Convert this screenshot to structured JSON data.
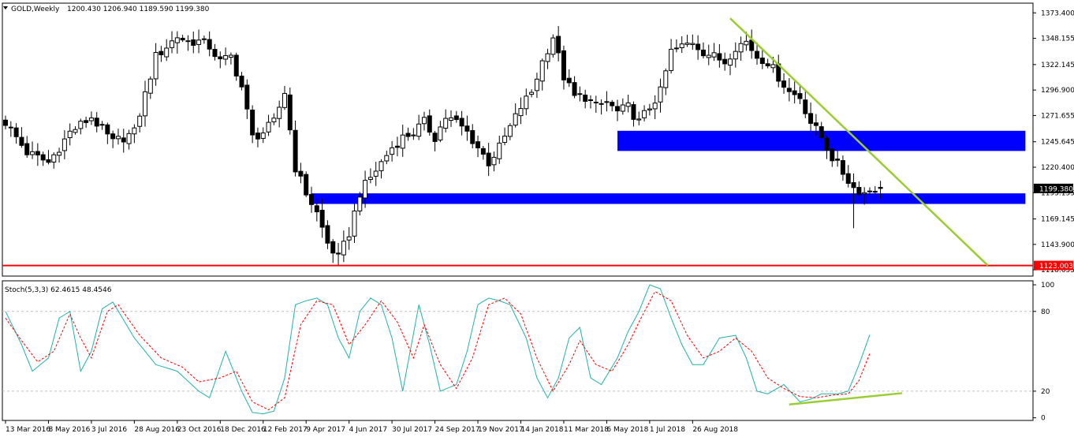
{
  "chart_data": {
    "type": "candlestick",
    "symbol": "GOLD",
    "timeframe": "Weekly",
    "header_title": "GOLD,Weekly",
    "header_ohlc": "1200.430 1206.940 1189.590 1199.380",
    "main": {
      "ylim": [
        1112.5,
        1383.0
      ],
      "yticks": [
        1373.4,
        1348.155,
        1322.145,
        1296.9,
        1271.655,
        1245.645,
        1220.4,
        1195.155,
        1169.145,
        1143.9,
        1118.655
      ],
      "ytick_labels": [
        "1373.400",
        "1348.155",
        "1322.145",
        "1296.900",
        "1271.655",
        "1245.645",
        "1220.400",
        "1195.155",
        "1169.145",
        "1143.900",
        "1118.655"
      ],
      "current_price": 1199.38,
      "current_price_label": "1199.380",
      "support_level": 1123.003,
      "support_label": "1123.003",
      "close_anchors": [
        [
          0,
          1265
        ],
        [
          4,
          1235
        ],
        [
          8,
          1225
        ],
        [
          12,
          1255
        ],
        [
          16,
          1270
        ],
        [
          20,
          1245
        ],
        [
          24,
          1255
        ],
        [
          28,
          1330
        ],
        [
          32,
          1350
        ],
        [
          34,
          1345
        ],
        [
          36,
          1345
        ],
        [
          38,
          1340
        ],
        [
          40,
          1325
        ],
        [
          42,
          1330
        ],
        [
          44,
          1300
        ],
        [
          46,
          1250
        ],
        [
          48,
          1255
        ],
        [
          50,
          1265
        ],
        [
          52,
          1295
        ],
        [
          54,
          1220
        ],
        [
          56,
          1195
        ],
        [
          58,
          1175
        ],
        [
          60,
          1145
        ],
        [
          62,
          1130
        ],
        [
          64,
          1155
        ],
        [
          66,
          1195
        ],
        [
          68,
          1210
        ],
        [
          70,
          1225
        ],
        [
          72,
          1240
        ],
        [
          74,
          1250
        ],
        [
          76,
          1255
        ],
        [
          78,
          1265
        ],
        [
          80,
          1250
        ],
        [
          82,
          1270
        ],
        [
          84,
          1265
        ],
        [
          86,
          1255
        ],
        [
          88,
          1240
        ],
        [
          90,
          1225
        ],
        [
          92,
          1240
        ],
        [
          94,
          1260
        ],
        [
          96,
          1280
        ],
        [
          98,
          1295
        ],
        [
          100,
          1325
        ],
        [
          102,
          1350
        ],
        [
          104,
          1310
        ],
        [
          106,
          1290
        ],
        [
          108,
          1290
        ],
        [
          110,
          1280
        ],
        [
          112,
          1285
        ],
        [
          114,
          1275
        ],
        [
          116,
          1280
        ],
        [
          118,
          1265
        ],
        [
          120,
          1280
        ],
        [
          122,
          1295
        ],
        [
          124,
          1335
        ],
        [
          126,
          1340
        ],
        [
          128,
          1345
        ],
        [
          130,
          1335
        ],
        [
          132,
          1330
        ],
        [
          134,
          1325
        ],
        [
          136,
          1340
        ],
        [
          138,
          1345
        ],
        [
          140,
          1330
        ],
        [
          142,
          1325
        ],
        [
          144,
          1310
        ],
        [
          146,
          1295
        ],
        [
          148,
          1290
        ],
        [
          150,
          1265
        ],
        [
          152,
          1250
        ],
        [
          154,
          1230
        ],
        [
          156,
          1215
        ],
        [
          158,
          1200
        ],
        [
          160,
          1195
        ],
        [
          162,
          1200
        ],
        [
          163,
          1199.38
        ]
      ],
      "zones": [
        {
          "x_from": 114,
          "x_to": 190,
          "y_from": 1236.5,
          "y_to": 1256.5,
          "color": "#0000ff"
        },
        {
          "x_from": 57,
          "x_to": 190,
          "y_from": 1184.0,
          "y_to": 1194.5,
          "color": "#0000ff"
        }
      ],
      "trendline": {
        "x1": 135,
        "y1": 1368,
        "x2": 183,
        "y2": 1123.003,
        "color": "#9acd32"
      }
    },
    "stochastic": {
      "label": "Stoch(5,3,3) 62.4615 48.4546",
      "params": [
        5,
        3,
        3
      ],
      "main_last": 62.4615,
      "signal_last": 48.4546,
      "ylim": [
        -2,
        103
      ],
      "levels": [
        80,
        20
      ],
      "ytick_labels": [
        "100",
        "80",
        "20",
        "0"
      ],
      "yticks": [
        100,
        80,
        20,
        0
      ],
      "main_color": "#20b2aa",
      "signal_color": "#ff0000",
      "main_anchors": [
        [
          0,
          80
        ],
        [
          3,
          55
        ],
        [
          5,
          35
        ],
        [
          8,
          45
        ],
        [
          10,
          75
        ],
        [
          12,
          80
        ],
        [
          14,
          35
        ],
        [
          16,
          50
        ],
        [
          18,
          82
        ],
        [
          20,
          87
        ],
        [
          24,
          60
        ],
        [
          28,
          40
        ],
        [
          32,
          35
        ],
        [
          36,
          20
        ],
        [
          38,
          15
        ],
        [
          41,
          50
        ],
        [
          44,
          20
        ],
        [
          46,
          4
        ],
        [
          48,
          3
        ],
        [
          50,
          5
        ],
        [
          52,
          30
        ],
        [
          54,
          85
        ],
        [
          56,
          88
        ],
        [
          58,
          90
        ],
        [
          60,
          85
        ],
        [
          62,
          60
        ],
        [
          64,
          45
        ],
        [
          66,
          80
        ],
        [
          68,
          90
        ],
        [
          70,
          85
        ],
        [
          72,
          60
        ],
        [
          74,
          20
        ],
        [
          77,
          85
        ],
        [
          79,
          55
        ],
        [
          81,
          20
        ],
        [
          84,
          25
        ],
        [
          86,
          50
        ],
        [
          88,
          85
        ],
        [
          90,
          90
        ],
        [
          92,
          88
        ],
        [
          94,
          85
        ],
        [
          97,
          60
        ],
        [
          99,
          30
        ],
        [
          101,
          15
        ],
        [
          103,
          30
        ],
        [
          105,
          60
        ],
        [
          107,
          68
        ],
        [
          109,
          30
        ],
        [
          111,
          25
        ],
        [
          114,
          45
        ],
        [
          116,
          65
        ],
        [
          118,
          80
        ],
        [
          120,
          100
        ],
        [
          122,
          97
        ],
        [
          124,
          75
        ],
        [
          126,
          55
        ],
        [
          128,
          40
        ],
        [
          130,
          40
        ],
        [
          133,
          60
        ],
        [
          136,
          62
        ],
        [
          138,
          45
        ],
        [
          140,
          20
        ],
        [
          142,
          18
        ],
        [
          145,
          25
        ],
        [
          148,
          12
        ],
        [
          150,
          14
        ],
        [
          152,
          18
        ],
        [
          155,
          18
        ],
        [
          157,
          20
        ],
        [
          159,
          40
        ],
        [
          161,
          62.46
        ]
      ],
      "signal_anchors": [
        [
          0,
          75
        ],
        [
          3,
          58
        ],
        [
          6,
          42
        ],
        [
          9,
          50
        ],
        [
          12,
          78
        ],
        [
          14,
          60
        ],
        [
          16,
          45
        ],
        [
          19,
          80
        ],
        [
          21,
          85
        ],
        [
          25,
          62
        ],
        [
          29,
          45
        ],
        [
          33,
          38
        ],
        [
          36,
          27
        ],
        [
          40,
          30
        ],
        [
          43,
          35
        ],
        [
          46,
          12
        ],
        [
          49,
          6
        ],
        [
          52,
          15
        ],
        [
          55,
          70
        ],
        [
          58,
          88
        ],
        [
          61,
          85
        ],
        [
          64,
          55
        ],
        [
          67,
          70
        ],
        [
          70,
          88
        ],
        [
          73,
          72
        ],
        [
          76,
          45
        ],
        [
          78,
          70
        ],
        [
          81,
          40
        ],
        [
          84,
          22
        ],
        [
          87,
          45
        ],
        [
          90,
          85
        ],
        [
          93,
          90
        ],
        [
          96,
          78
        ],
        [
          99,
          45
        ],
        [
          102,
          20
        ],
        [
          105,
          40
        ],
        [
          107,
          58
        ],
        [
          110,
          40
        ],
        [
          113,
          35
        ],
        [
          116,
          55
        ],
        [
          118,
          72
        ],
        [
          121,
          95
        ],
        [
          124,
          88
        ],
        [
          127,
          62
        ],
        [
          130,
          45
        ],
        [
          133,
          50
        ],
        [
          136,
          60
        ],
        [
          139,
          50
        ],
        [
          142,
          30
        ],
        [
          145,
          22
        ],
        [
          148,
          16
        ],
        [
          151,
          15
        ],
        [
          154,
          17
        ],
        [
          157,
          18
        ],
        [
          159,
          28
        ],
        [
          161,
          48.45
        ]
      ],
      "divergence_line": {
        "x1": 146,
        "y1": 10,
        "x2": 167,
        "y2": 18.5,
        "color": "#9acd32"
      }
    },
    "x_axis": {
      "bars_total": 192,
      "ticks": [
        {
          "bar": 0,
          "label": "13 Mar 2016"
        },
        {
          "bar": 8,
          "label": "8 May 2016"
        },
        {
          "bar": 16,
          "label": "3 Jul 2016"
        },
        {
          "bar": 24,
          "label": "28 Aug 2016"
        },
        {
          "bar": 32,
          "label": "23 Oct 2016"
        },
        {
          "bar": 40,
          "label": "18 Dec 2016"
        },
        {
          "bar": 48,
          "label": "12 Feb 2017"
        },
        {
          "bar": 56,
          "label": "9 Apr 2017"
        },
        {
          "bar": 64,
          "label": "4 Jun 2017"
        },
        {
          "bar": 72,
          "label": "30 Jul 2017"
        },
        {
          "bar": 80,
          "label": "24 Sep 2017"
        },
        {
          "bar": 88,
          "label": "19 Nov 2017"
        },
        {
          "bar": 96,
          "label": "14 Jan 2018"
        },
        {
          "bar": 104,
          "label": "11 Mar 2018"
        },
        {
          "bar": 112,
          "label": "6 May 2018"
        },
        {
          "bar": 120,
          "label": "1 Jul 2018"
        },
        {
          "bar": 128,
          "label": "26 Aug 2018"
        }
      ]
    },
    "colors": {
      "bull_body": "#ffffff",
      "bear_body": "#000000",
      "wick": "#000000",
      "grid_level": "#c0c0c0",
      "support_line": "#ff0000",
      "label_bg_current": "#000000",
      "label_bg_support": "#ff0000"
    }
  }
}
